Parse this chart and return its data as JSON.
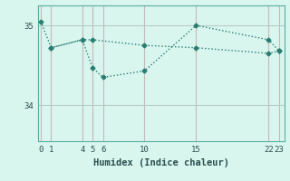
{
  "line1_x": [
    0,
    1,
    4,
    5,
    10,
    15,
    22,
    23
  ],
  "line1_y": [
    35.05,
    34.72,
    34.82,
    34.82,
    34.75,
    34.72,
    34.65,
    34.68
  ],
  "line2_x": [
    1,
    4,
    5,
    6,
    10,
    15,
    22,
    23
  ],
  "line2_y": [
    34.72,
    34.82,
    34.47,
    34.35,
    34.43,
    35.0,
    34.82,
    34.68
  ],
  "line_color": "#2a7d72",
  "bg_color": "#d8f5ee",
  "grid_color_v": "#c8b8b8",
  "grid_color_h": "#b8ccc8",
  "xlabel": "Humidex (Indice chaleur)",
  "xticks": [
    0,
    1,
    4,
    5,
    6,
    10,
    15,
    22,
    23
  ],
  "ytick_vals": [
    34,
    35
  ],
  "ytick_labels": [
    "34",
    "35"
  ],
  "xlim": [
    -0.3,
    23.5
  ],
  "ylim": [
    33.55,
    35.25
  ],
  "marker": "D",
  "markersize": 2.5,
  "linewidth": 1.0,
  "linestyle": ":"
}
